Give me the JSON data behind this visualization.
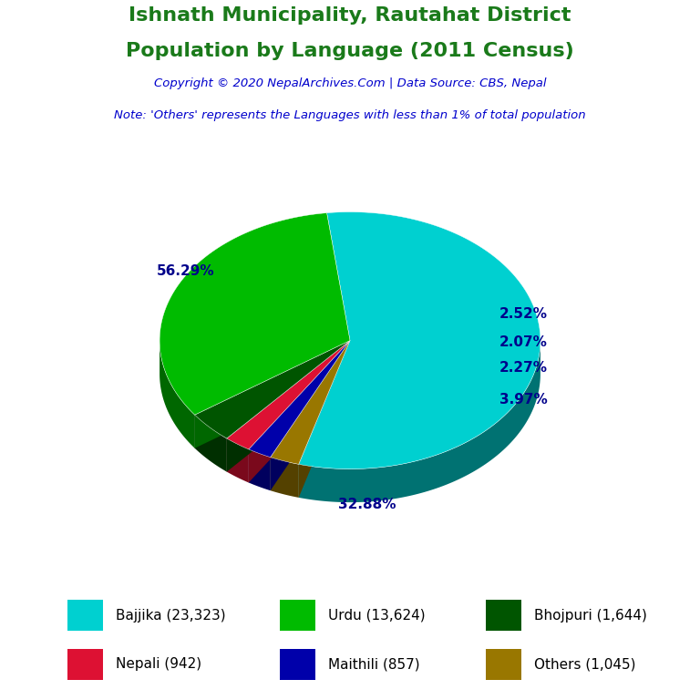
{
  "title_line1": "Ishnath Municipality, Rautahat District",
  "title_line2": "Population by Language (2011 Census)",
  "title_color": "#1a7a1a",
  "copyright_text": "Copyright © 2020 NepalArchives.Com | Data Source: CBS, Nepal",
  "copyright_color": "#0000cc",
  "note_text": "Note: 'Others' represents the Languages with less than 1% of total population",
  "note_color": "#0000cc",
  "labels": [
    "Bajjika",
    "Urdu",
    "Bhojpuri",
    "Nepali",
    "Maithili",
    "Others"
  ],
  "values": [
    23323,
    13624,
    1644,
    942,
    857,
    1045
  ],
  "percentages": [
    56.29,
    32.88,
    3.97,
    2.27,
    2.07,
    2.52
  ],
  "colors": [
    "#00d0d0",
    "#00bb00",
    "#005500",
    "#dd1133",
    "#0000aa",
    "#997700"
  ],
  "legend_labels": [
    "Bajjika (23,323)",
    "Urdu (13,624)",
    "Bhojpuri (1,644)",
    "Nepali (942)",
    "Maithili (857)",
    "Others (1,045)"
  ],
  "label_color": "#00008B",
  "background_color": "#ffffff"
}
